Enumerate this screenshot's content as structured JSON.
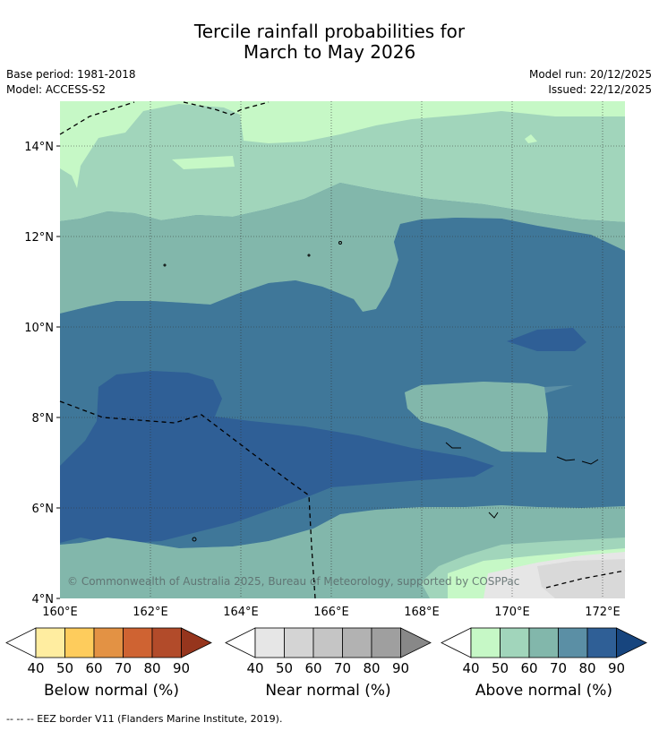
{
  "title": {
    "line1": "Tercile rainfall probabilities for",
    "line2": "March to May 2026"
  },
  "meta": {
    "base_period": "Base period: 1981-2018",
    "model": "Model: ACCESS-S2",
    "model_run": "Model run: 20/12/2025",
    "issued": "Issued: 22/12/2025"
  },
  "map": {
    "lat_ticks": [
      "4°N",
      "6°N",
      "8°N",
      "10°N",
      "12°N",
      "14°N"
    ],
    "lon_ticks": [
      "160°E",
      "162°E",
      "164°E",
      "166°E",
      "168°E",
      "170°E",
      "172°E"
    ],
    "copyright": "© Commonwealth of Australia 2025, Bureau of Meteorology, supported by COSPPac",
    "extent": {
      "lon_min": 160,
      "lon_max": 172.5,
      "lat_min": 4,
      "lat_max": 15
    }
  },
  "legend": {
    "below": {
      "label": "Below normal (%)",
      "ticks": [
        "40",
        "50",
        "60",
        "70",
        "80",
        "90"
      ],
      "colors": [
        "#ffeda0",
        "#fecc5c",
        "#e39244",
        "#cf6332",
        "#b24b2a",
        "#96351d"
      ]
    },
    "near": {
      "label": "Near normal (%)",
      "ticks": [
        "40",
        "50",
        "60",
        "70",
        "80",
        "90"
      ],
      "colors": [
        "#e6e6e6",
        "#d4d4d4",
        "#c5c5c5",
        "#b2b2b2",
        "#9f9f9f",
        "#888888"
      ]
    },
    "above": {
      "label": "Above normal (%)",
      "ticks": [
        "40",
        "50",
        "60",
        "70",
        "80",
        "90"
      ],
      "colors": [
        "#c6f8c6",
        "#a1d5bb",
        "#82b7ab",
        "#5b8fa5",
        "#2f5f96",
        "#17457e"
      ]
    }
  },
  "footnote": "--  --  -- EEZ border V11 (Flanders Marine Institute, 2019)."
}
